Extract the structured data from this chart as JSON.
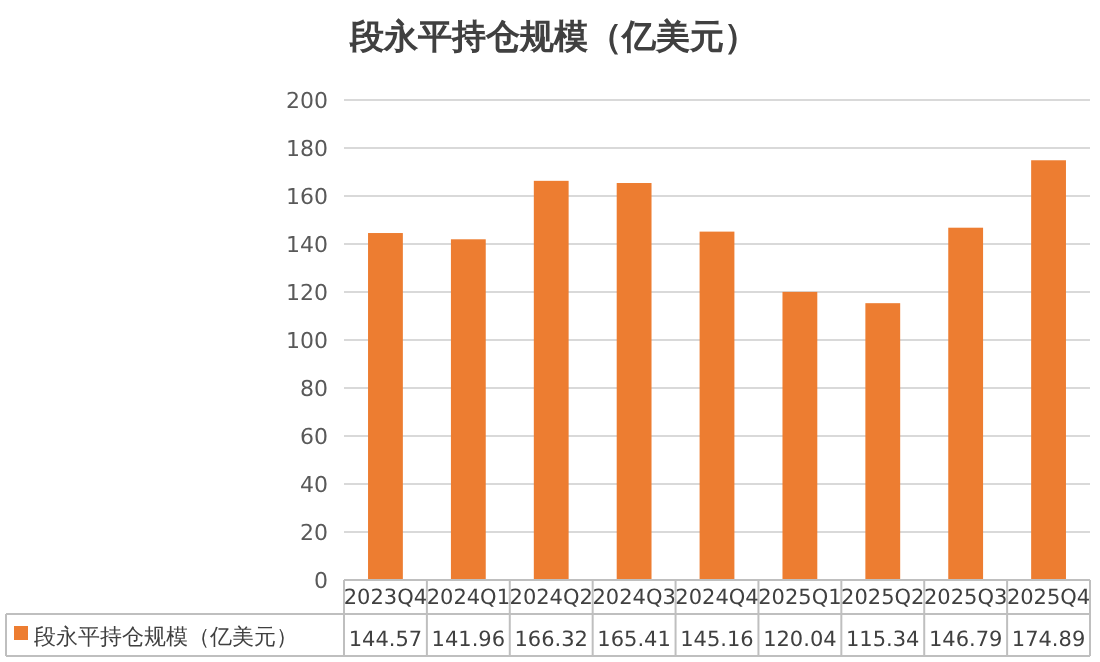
{
  "chart_data": {
    "type": "bar",
    "title": "段永平持仓规模（亿美元）",
    "categories": [
      "2023Q4",
      "2024Q1",
      "2024Q2",
      "2024Q3",
      "2024Q4",
      "2025Q1",
      "2025Q2",
      "2025Q3",
      "2025Q4"
    ],
    "series": [
      {
        "name": "段永平持仓规模（亿美元）",
        "color": "#ed7d31",
        "values": [
          144.57,
          141.96,
          166.32,
          165.41,
          145.16,
          120.04,
          115.34,
          146.79,
          174.89
        ]
      }
    ],
    "ylim": [
      0,
      200
    ],
    "yticks": [
      0,
      20,
      40,
      60,
      80,
      100,
      120,
      140,
      160,
      180,
      200
    ],
    "grid": "y",
    "data_labels": true,
    "legend": "bottom"
  }
}
